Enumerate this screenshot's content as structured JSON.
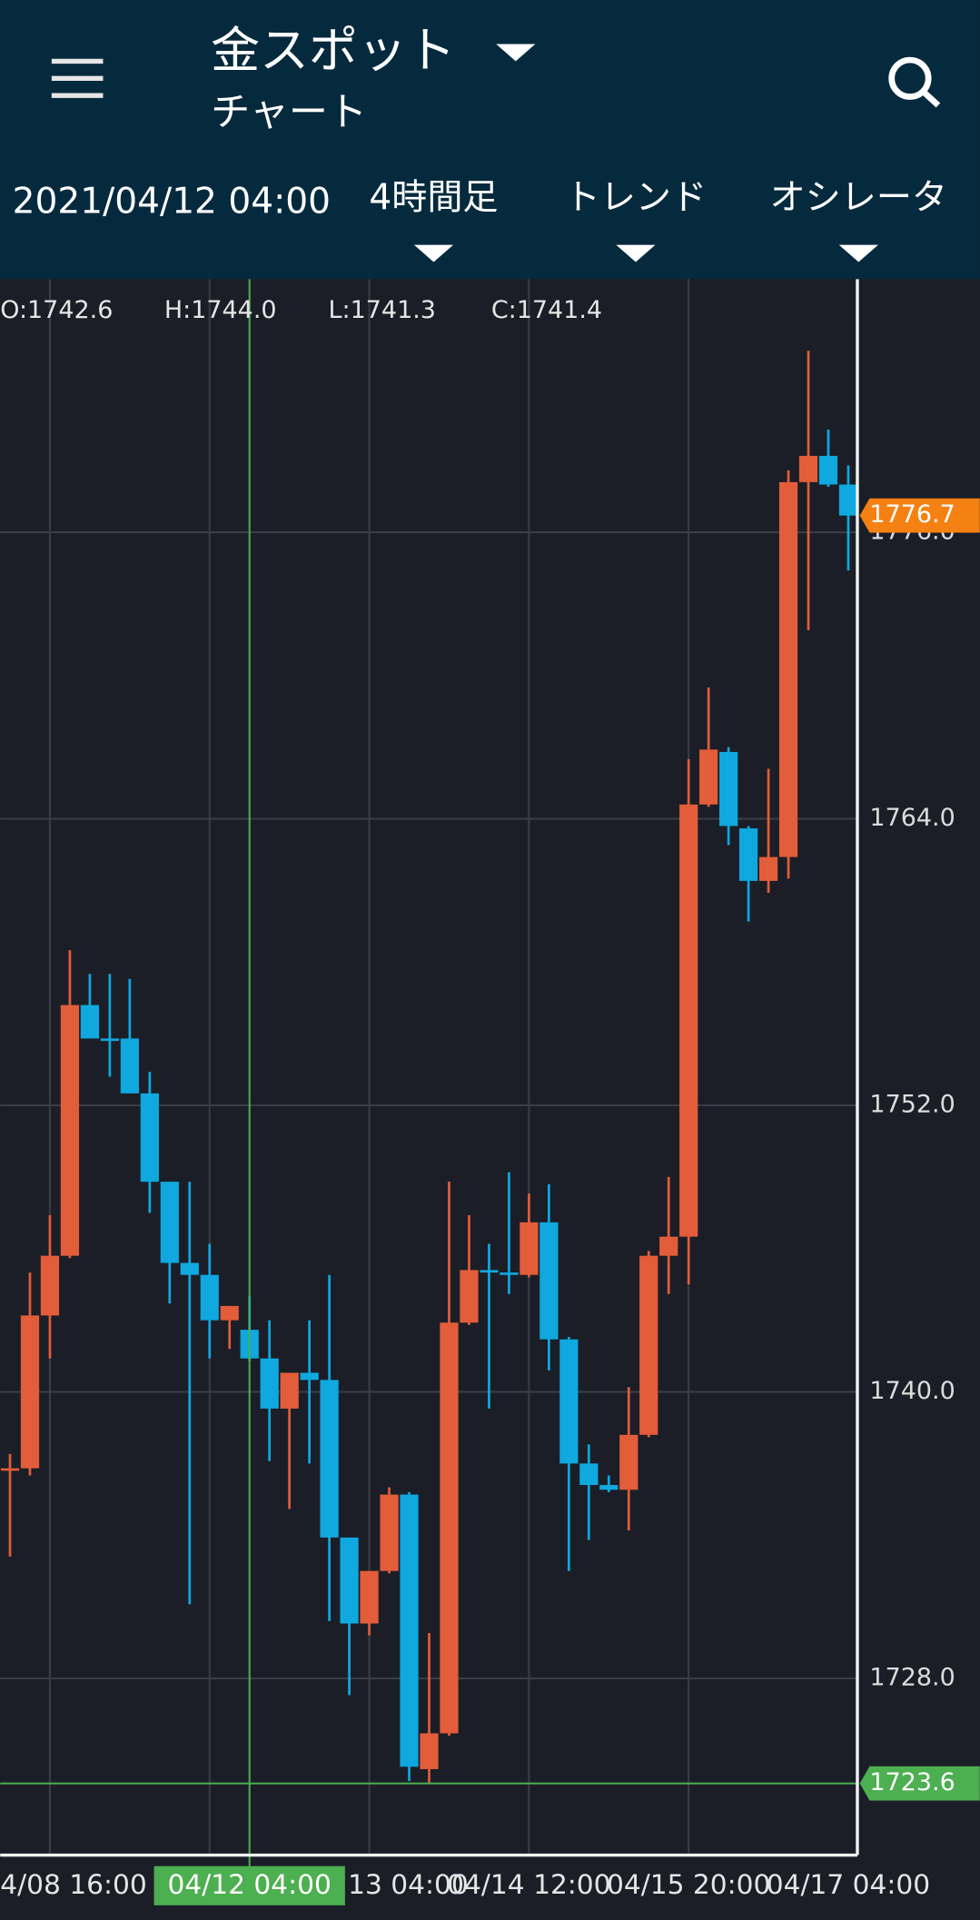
{
  "header": {
    "title": "金スポット",
    "subtitle": "チャート",
    "datetime": "2021/04/12 04:00",
    "tabs": [
      "4時間足",
      "トレンド",
      "オシレータ"
    ]
  },
  "ohlc_readout": [
    "O:1742.6",
    "H:1744.0",
    "L:1741.3",
    "C:1741.4"
  ],
  "chart_data": {
    "type": "candlestick",
    "categories": [
      null,
      null,
      "4/08 16:00",
      null,
      null,
      null,
      null,
      null,
      null,
      null,
      null,
      null,
      "04/12 04:00",
      null,
      null,
      null,
      null,
      null,
      "13 04:00",
      null,
      null,
      null,
      null,
      null,
      null,
      null,
      "04/14 12:00",
      null,
      null,
      null,
      null,
      null,
      null,
      null,
      "04/15 20:00",
      null,
      null,
      null,
      null,
      null,
      null,
      null,
      "04/17 04:00"
    ],
    "open": [
      1736.7,
      1736.8,
      1743.2,
      1745.7,
      1756.2,
      1754.8,
      1754.8,
      1752.5,
      1748.8,
      1745.4,
      1744.9,
      1743.0,
      1742.6,
      1741.4,
      1739.3,
      1740.8,
      1740.5,
      1733.9,
      1730.3,
      1732.5,
      1735.7,
      1724.2,
      1725.7,
      1742.9,
      1745.1,
      1745.0,
      1744.9,
      1747.1,
      1742.2,
      1737.0,
      1736.1,
      1735.9,
      1738.2,
      1745.7,
      1746.5,
      1764.6,
      1766.8,
      1763.6,
      1761.4,
      1762.4,
      1778.1,
      1779.2,
      1778.0
    ],
    "high": [
      1737.4,
      1745.0,
      1747.4,
      1758.5,
      1757.5,
      1757.5,
      1757.3,
      1753.4,
      1748.8,
      1748.8,
      1746.2,
      1743.6,
      1744.0,
      1743.0,
      1740.8,
      1743.0,
      1744.9,
      1733.9,
      1732.5,
      1736.0,
      1735.8,
      1729.9,
      1748.8,
      1747.4,
      1746.2,
      1749.2,
      1748.3,
      1748.7,
      1742.3,
      1737.8,
      1736.5,
      1740.2,
      1745.9,
      1749.0,
      1766.5,
      1769.5,
      1767.0,
      1763.7,
      1766.1,
      1778.6,
      1783.6,
      1780.3,
      1778.8
    ],
    "low": [
      1733.1,
      1736.5,
      1741.4,
      1745.6,
      1754.8,
      1753.2,
      1752.5,
      1747.5,
      1743.7,
      1731.1,
      1741.4,
      1741.8,
      1741.3,
      1737.1,
      1735.1,
      1737.0,
      1730.4,
      1727.3,
      1729.8,
      1732.4,
      1723.7,
      1723.6,
      1725.6,
      1742.8,
      1739.3,
      1744.1,
      1744.8,
      1740.9,
      1732.5,
      1733.8,
      1735.8,
      1734.2,
      1738.1,
      1744.1,
      1744.5,
      1764.5,
      1762.9,
      1759.7,
      1760.9,
      1761.5,
      1771.9,
      1777.9,
      1774.4
    ],
    "close": [
      1736.8,
      1743.2,
      1745.7,
      1756.2,
      1754.8,
      1754.7,
      1752.5,
      1748.8,
      1745.4,
      1744.9,
      1743.0,
      1743.6,
      1741.4,
      1739.3,
      1740.8,
      1740.5,
      1733.9,
      1730.3,
      1732.5,
      1735.7,
      1724.3,
      1725.7,
      1742.9,
      1745.1,
      1745.0,
      1744.9,
      1747.1,
      1742.2,
      1737.0,
      1736.1,
      1735.9,
      1738.2,
      1745.7,
      1746.5,
      1764.6,
      1766.9,
      1763.7,
      1761.4,
      1762.4,
      1778.1,
      1779.2,
      1778.0,
      1776.7
    ],
    "up_color": "#e35d3a",
    "down_color": "#0fa8df",
    "ylim": [
      1720.6,
      1786.6
    ],
    "yticks": [
      {
        "value": 1728,
        "label": "1728.0"
      },
      {
        "value": 1740,
        "label": "1740.0"
      },
      {
        "value": 1752,
        "label": "1752.0"
      },
      {
        "value": 1764,
        "label": "1764.0"
      },
      {
        "value": 1776,
        "label": "1776.0"
      }
    ],
    "grid": true,
    "last_price": 1776.7,
    "last_price_color": "#f58113",
    "crosshair_price": 1723.6,
    "crosshair_color": "#4caf50"
  }
}
